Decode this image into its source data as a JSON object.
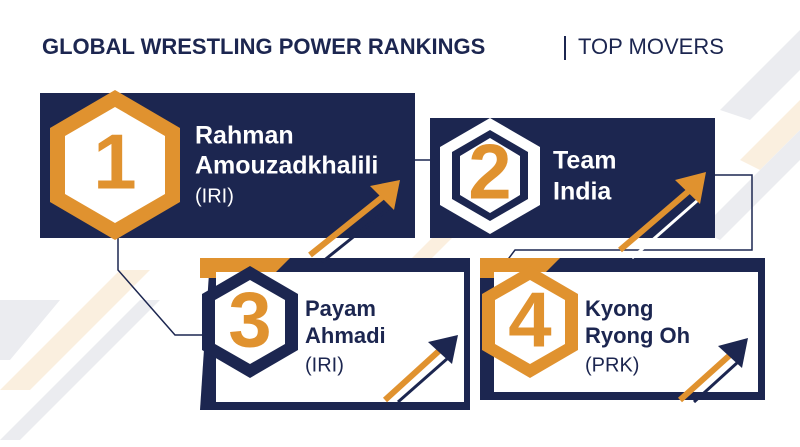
{
  "header": {
    "title": "GLOBAL WRESTLING POWER RANKINGS",
    "subtitle": "TOP MOVERS"
  },
  "cards": [
    {
      "rank": 1,
      "name_lines": [
        "Rahman",
        "Amouzadkhalili"
      ],
      "country": "(IRI)"
    },
    {
      "rank": 2,
      "name_lines": [
        "Team",
        "India"
      ]
    },
    {
      "rank": 3,
      "name_lines": [
        "Payam",
        "Ahmadi"
      ],
      "country": "(IRI)"
    },
    {
      "rank": 4,
      "name_lines": [
        "Kyong",
        "Ryong Oh"
      ],
      "country": "(PRK)"
    }
  ]
}
